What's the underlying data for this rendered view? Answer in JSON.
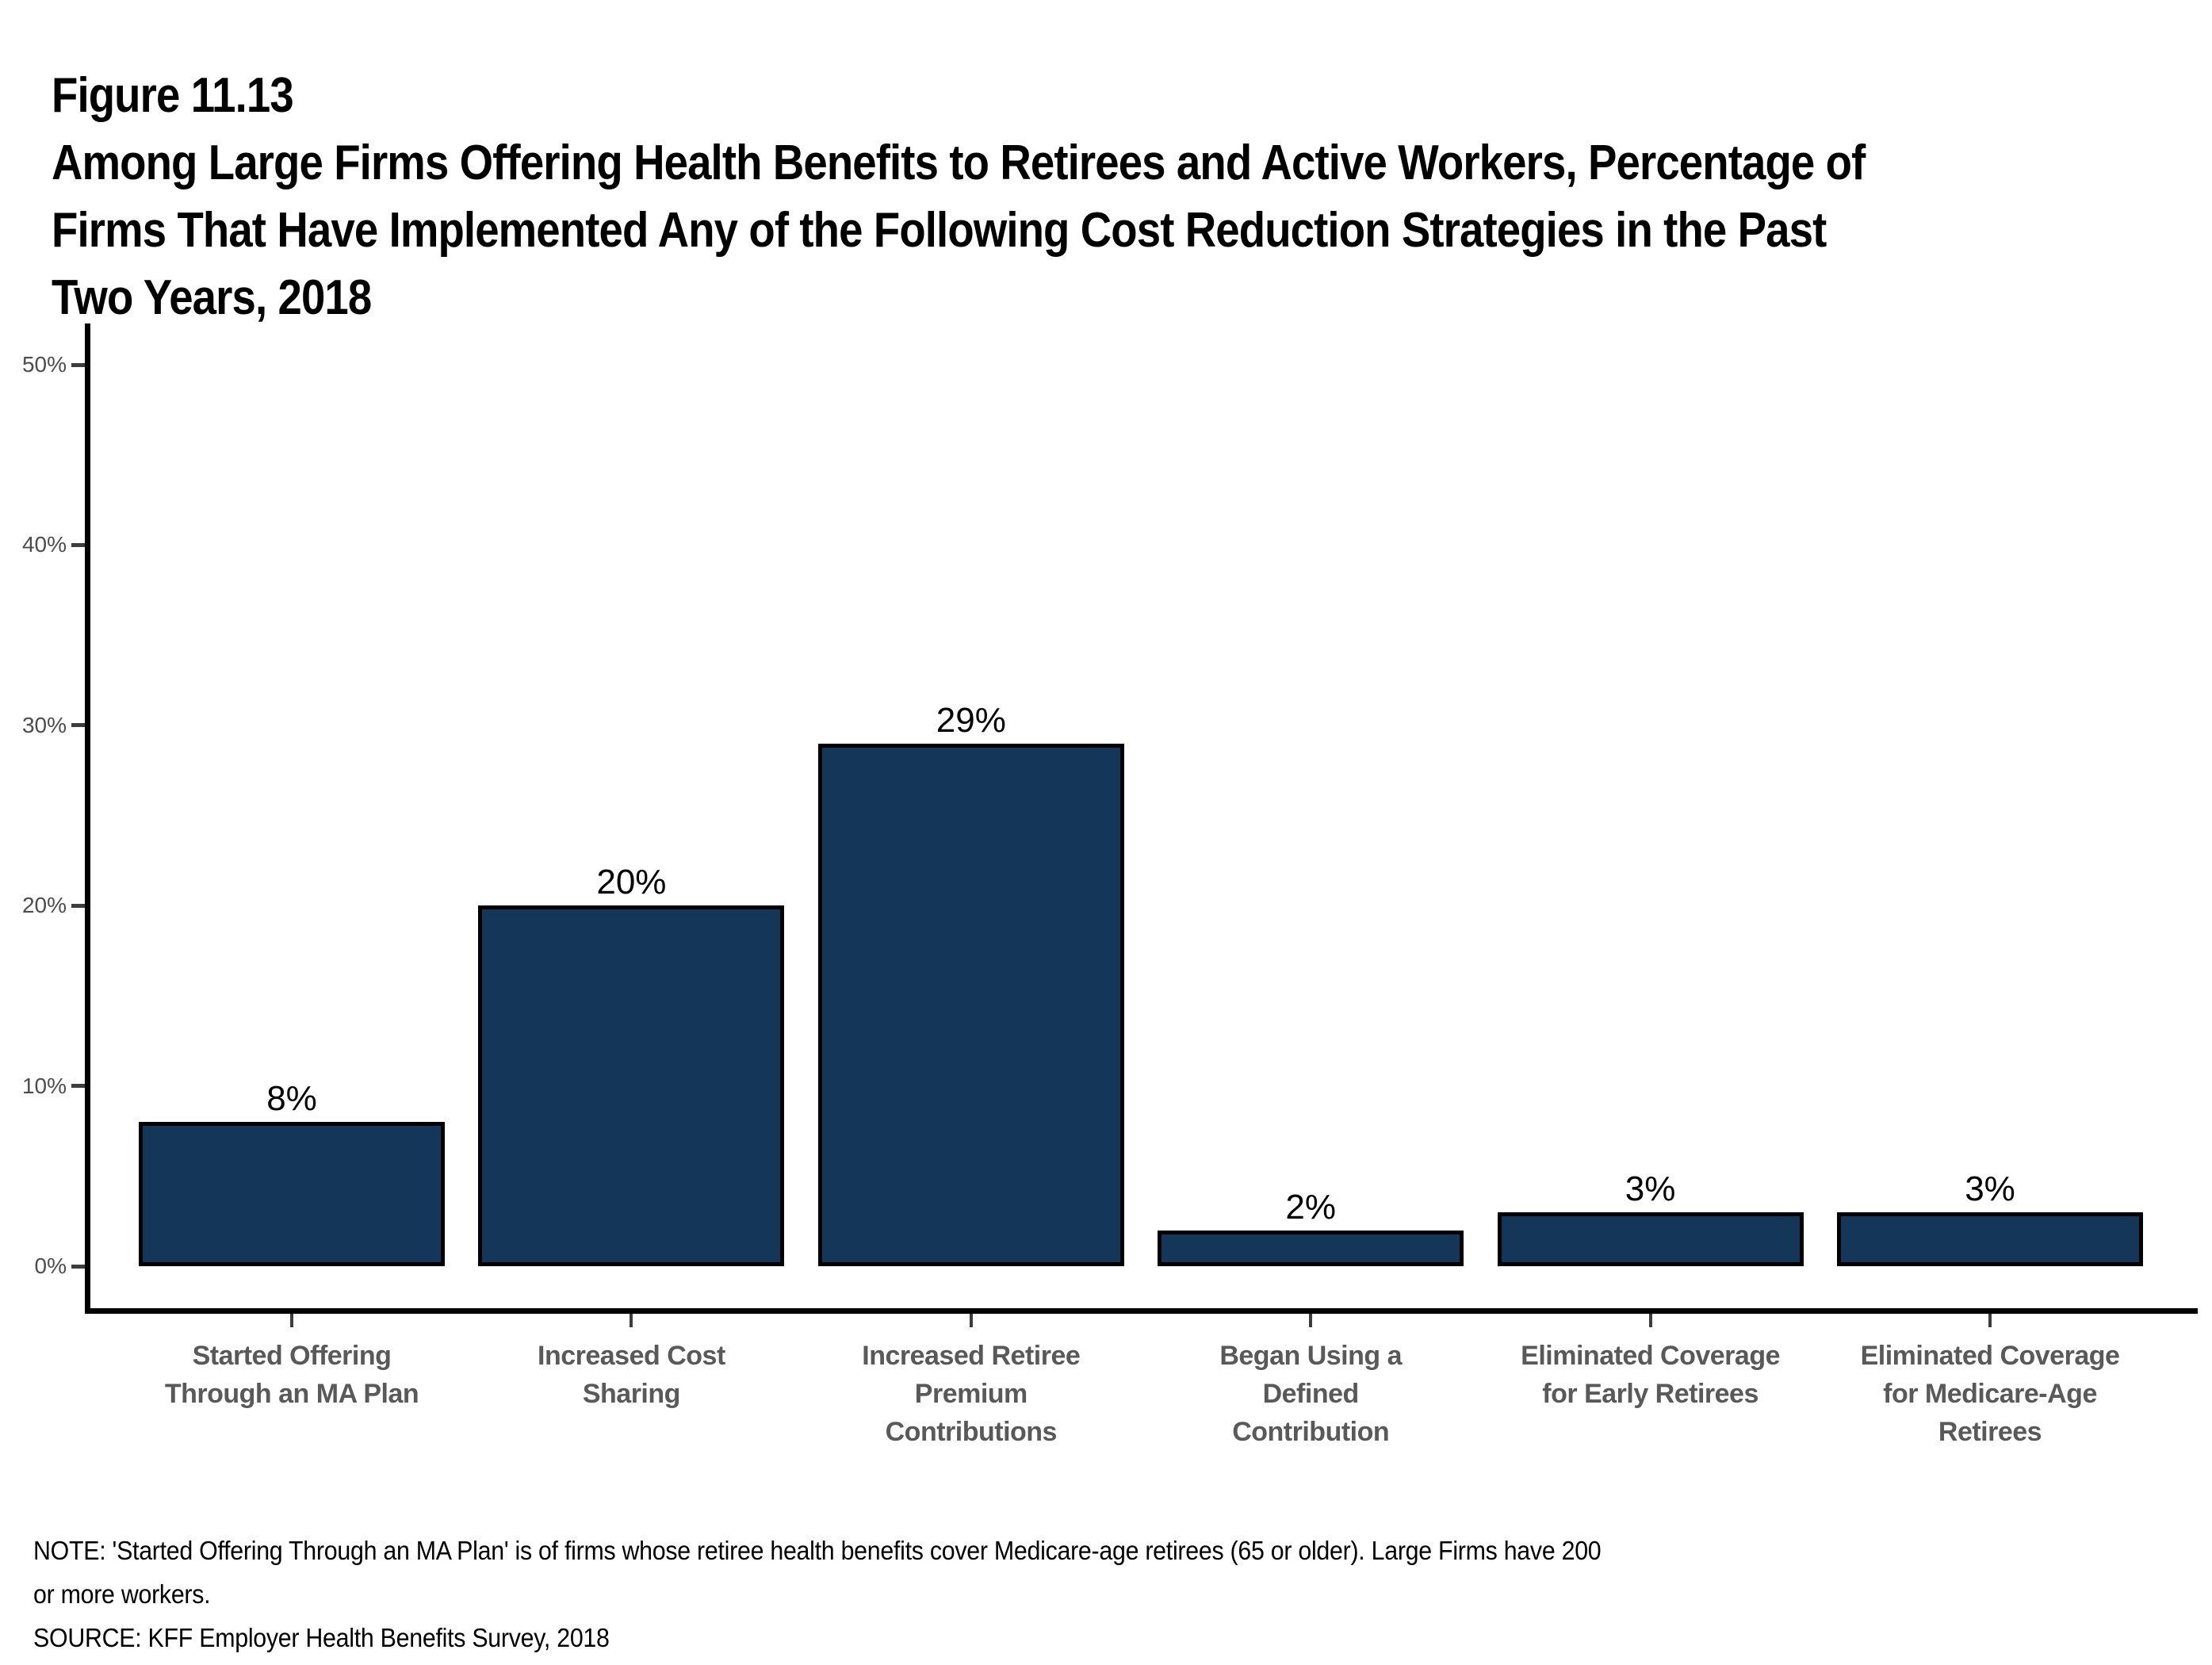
{
  "title": {
    "lines": [
      "Figure 11.13",
      "Among Large Firms Offering Health Benefits to Retirees and Active Workers, Percentage of",
      "Firms That Have Implemented Any of the Following Cost Reduction Strategies in the Past",
      "Two Years, 2018"
    ]
  },
  "chart_data": {
    "type": "bar",
    "title": "Among Large Firms Offering Health Benefits to Retirees and Active Workers, Percentage of Firms That Have Implemented Any of the Following Cost Reduction Strategies in the Past Two Years, 2018",
    "categories": [
      "Started Offering Through an MA Plan",
      "Increased Cost Sharing",
      "Increased Retiree Premium Contributions",
      "Began Using a Defined Contribution",
      "Eliminated Coverage for Early Retirees",
      "Eliminated Coverage for Medicare-Age Retirees"
    ],
    "category_label_lines": [
      [
        "Started Offering",
        "Through an MA Plan"
      ],
      [
        "Increased Cost",
        "Sharing"
      ],
      [
        "Increased Retiree",
        "Premium",
        "Contributions"
      ],
      [
        "Began Using a",
        "Defined",
        "Contribution"
      ],
      [
        "Eliminated Coverage",
        "for Early Retirees"
      ],
      [
        "Eliminated Coverage",
        "for Medicare-Age",
        "Retirees"
      ]
    ],
    "values": [
      8,
      20,
      29,
      2,
      3,
      3
    ],
    "value_labels": [
      "8%",
      "20%",
      "29%",
      "2%",
      "3%",
      "3%"
    ],
    "xlabel": "",
    "ylabel": "",
    "ylim": [
      0,
      50
    ],
    "ytick_values": [
      0,
      10,
      20,
      30,
      40,
      50
    ],
    "ytick_labels": [
      "0%",
      "10%",
      "20%",
      "30%",
      "40%",
      "50%"
    ],
    "grid": false,
    "legend": false,
    "bar_color": "#143659",
    "bar_border_color": "#000000"
  },
  "note": {
    "lines": [
      "NOTE: 'Started Offering Through an MA Plan' is of firms whose retiree health benefits cover Medicare-age retirees (65 or older). Large Firms have 200",
      "or more workers."
    ],
    "source": "SOURCE: KFF Employer Health Benefits Survey, 2018"
  }
}
